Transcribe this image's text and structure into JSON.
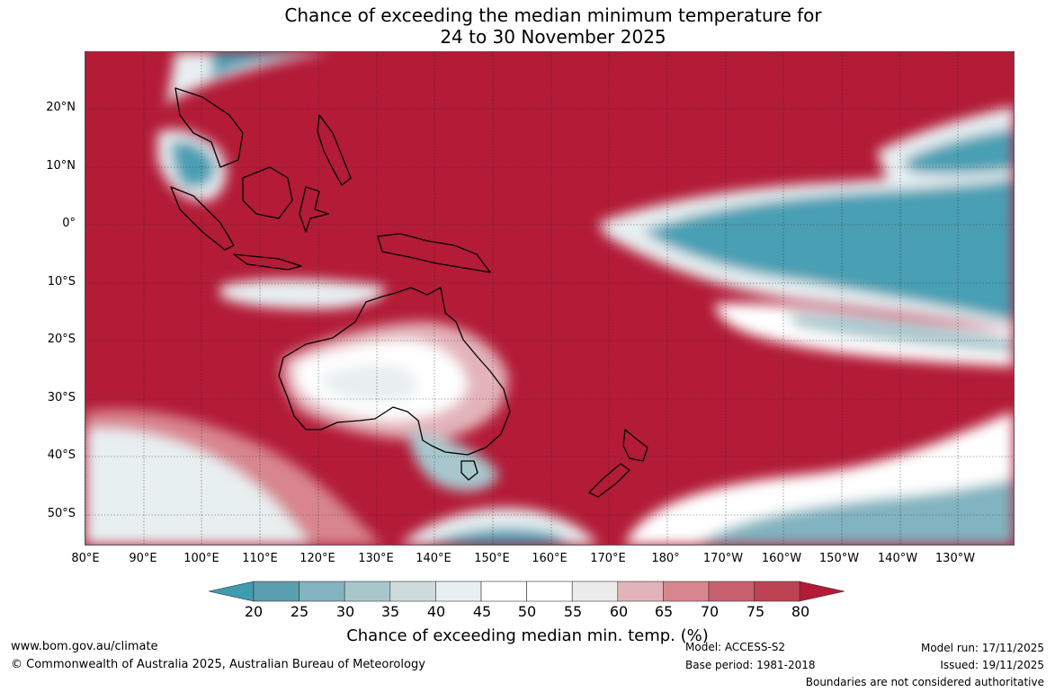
{
  "title": {
    "line1": "Chance of exceeding the median minimum temperature for",
    "line2": "24 to 30 November 2025"
  },
  "map": {
    "lat_labels": [
      "20°N",
      "10°N",
      "0°",
      "10°S",
      "20°S",
      "30°S",
      "40°S",
      "50°S"
    ],
    "lon_labels": [
      "80°E",
      "90°E",
      "100°E",
      "110°E",
      "120°E",
      "130°E",
      "140°E",
      "150°E",
      "160°E",
      "170°E",
      "180°",
      "170°W",
      "160°W",
      "150°W",
      "140°W",
      "130°W"
    ]
  },
  "legend": {
    "ticks": [
      "20",
      "25",
      "30",
      "35",
      "40",
      "45",
      "50",
      "55",
      "60",
      "65",
      "70",
      "75",
      "80"
    ],
    "colors": [
      "#5a9fb0",
      "#81b3c0",
      "#a8c7cd",
      "#cfdadc",
      "#e8eff1",
      "#ffffff",
      "#ffffff",
      "#ececec",
      "#e3b3ba",
      "#d8858f",
      "#c86070",
      "#bd4352"
    ],
    "under_color": "#3e9bb0",
    "over_color": "#b31b37",
    "title": "Chance of exceeding median min. temp. (%)"
  },
  "footer": {
    "website": "www.bom.gov.au/climate",
    "copyright": "© Commonwealth of Australia 2025, Australian Bureau of Meteorology",
    "model": "Model: ACCESS-S2",
    "base_period": "Base period: 1981-2018",
    "model_run": "Model run: 17/11/2025",
    "issued": "Issued: 19/11/2025",
    "disclaimer": "Boundaries are not considered authoritative"
  },
  "colors": {
    "high_probability": "#b31b37",
    "low_probability": "#4a9fb3",
    "neutral": "#ffffff",
    "land_outline": "#000000"
  }
}
